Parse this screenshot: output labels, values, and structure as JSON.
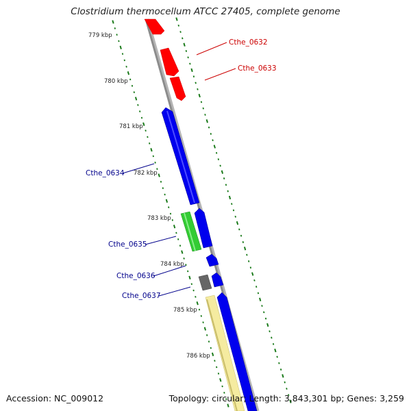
{
  "title": "Clostridium thermocellum ATCC 27405, complete genome",
  "footer": {
    "accession": "Accession: NC_009012",
    "summary": "Topology: circular; Length: 3,843,301 bp; Genes: 3,259"
  },
  "colors": {
    "backbone": "#8c8c8c",
    "tick": "#1a7a1a",
    "red": "#ff0000",
    "blue": "#0000ee",
    "green": "#33cc33",
    "gray": "#666666",
    "yellow": "#f5eba0",
    "label_red": "#cc0000",
    "label_blue": "#00008b"
  },
  "kbp_labels": [
    "779 kbp",
    "780 kbp",
    "781 kbp",
    "782 kbp",
    "783 kbp",
    "784 kbp",
    "785 kbp",
    "786 kbp"
  ],
  "genes": [
    {
      "label": "Cthe_0632",
      "side": "right"
    },
    {
      "label": "Cthe_0633",
      "side": "right"
    },
    {
      "label": "Cthe_0634",
      "side": "left"
    },
    {
      "label": "Cthe_0635",
      "side": "left"
    },
    {
      "label": "Cthe_0636",
      "side": "left"
    },
    {
      "label": "Cthe_0637",
      "side": "left"
    }
  ]
}
